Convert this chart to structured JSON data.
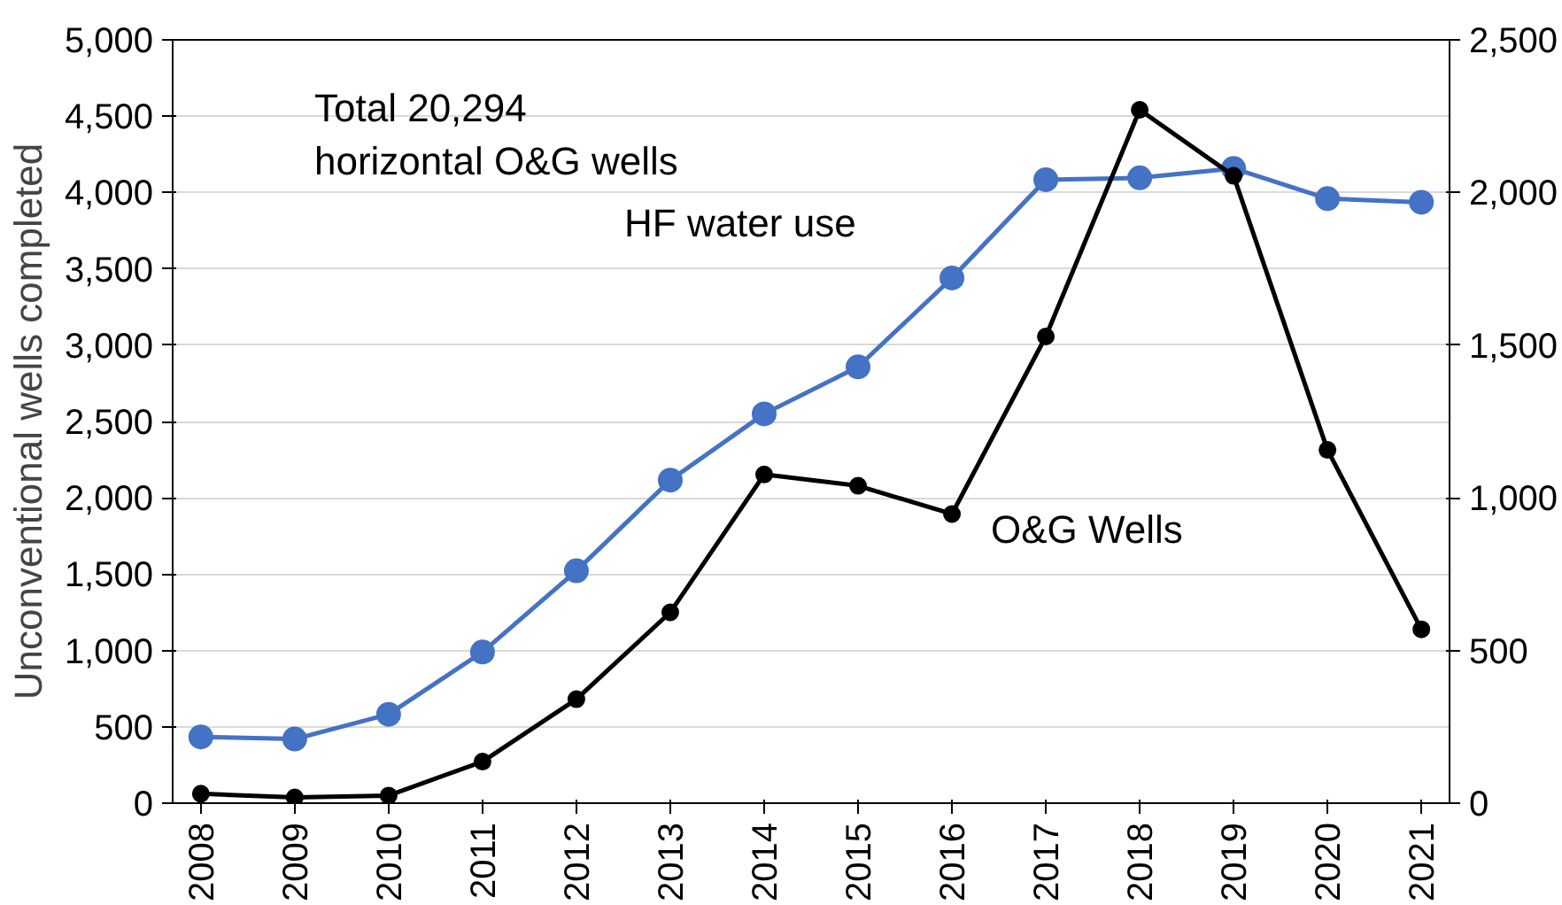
{
  "chart_data": {
    "type": "line",
    "categories": [
      "2008",
      "2009",
      "2010",
      "2011",
      "2012",
      "2013",
      "2014",
      "2015",
      "2016",
      "2017",
      "2018",
      "2019",
      "2020",
      "2021"
    ],
    "ylabel": "Unconventional wells completed",
    "ylim": [
      0,
      5000
    ],
    "yticks": [
      0,
      {
        "value": 500,
        "label": "500"
      },
      {
        "value": 1000,
        "label": "1,000"
      },
      {
        "value": 1500,
        "label": "1,500"
      },
      {
        "value": 2000,
        "label": "2,000"
      },
      {
        "value": 2500,
        "label": "2,500"
      },
      {
        "value": 3000,
        "label": "3,000"
      },
      {
        "value": 3500,
        "label": "3,500"
      },
      {
        "value": 4000,
        "label": "4,000"
      },
      {
        "value": 4500,
        "label": "4,500"
      },
      {
        "value": 5000,
        "label": "5,000"
      }
    ],
    "y2lim": [
      0,
      2500
    ],
    "y2ticks": [
      0,
      500,
      {
        "value": 1000,
        "label": "1,000"
      },
      {
        "value": 1500,
        "label": "1,500"
      },
      {
        "value": 2000,
        "label": "2,000"
      },
      {
        "value": 2500,
        "label": "2,500"
      }
    ],
    "series": [
      {
        "name": "HF water use",
        "color": "#4472c4",
        "axis": "y2",
        "values": [
          217,
          210,
          291,
          495,
          761,
          1058,
          1275,
          1429,
          1720,
          2042,
          2048,
          2079,
          1980,
          1968
        ]
      },
      {
        "name": "O&G Wells",
        "color": "#000000",
        "values": [
          62,
          37,
          50,
          272,
          681,
          1250,
          2153,
          2079,
          1894,
          3057,
          4542,
          4109,
          2314,
          1139
        ]
      }
    ],
    "annotations": [
      "Total 20,294\nhorizontal O&G wells"
    ],
    "grid": "y",
    "marker": "circle",
    "line_style": "solid"
  }
}
